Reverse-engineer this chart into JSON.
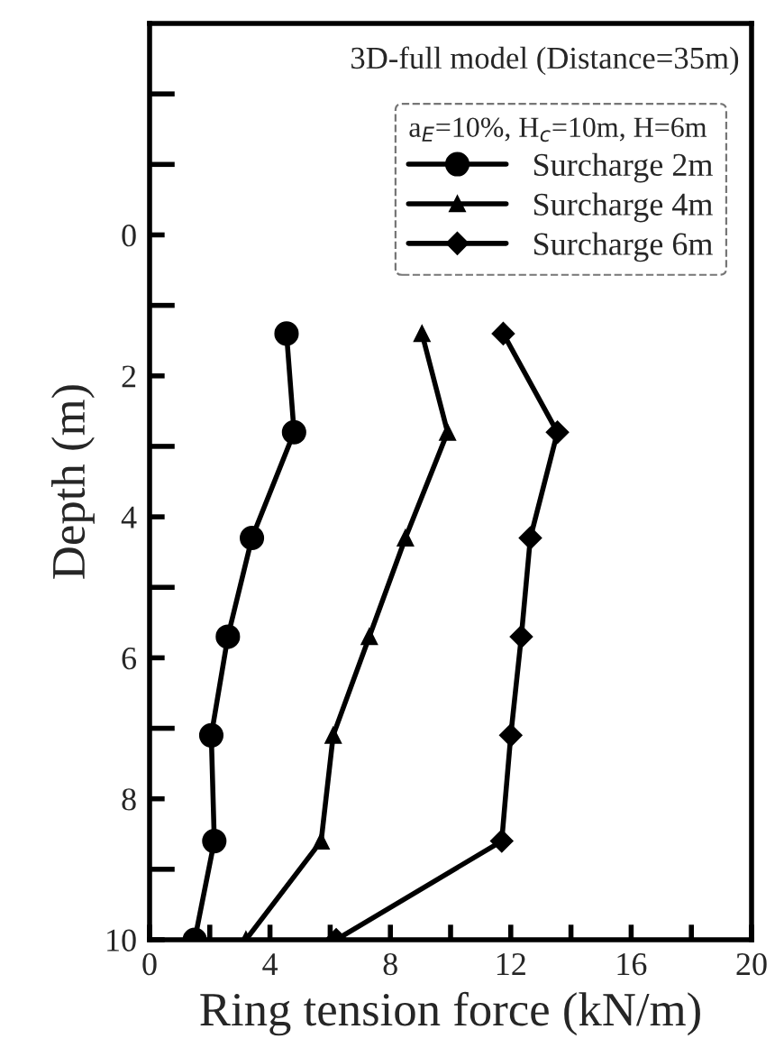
{
  "chart_data": {
    "type": "line",
    "xlabel": "Ring tension force (kN/m)",
    "ylabel": "Depth (m)",
    "legend_title": "a$_{E}$=10%, H$_{c}$=10m, H=6m",
    "annotations": [
      "3D-full model (Distance=35m)"
    ],
    "xlim": [
      0,
      20
    ],
    "ylim": [
      10,
      -3
    ],
    "xticks": [
      0,
      {
        "value": 2,
        "label": null
      },
      4,
      {
        "value": 6,
        "label": null
      },
      8,
      {
        "value": 10,
        "label": null
      },
      12,
      {
        "value": 14,
        "label": null
      },
      16,
      {
        "value": 18,
        "label": null
      },
      20
    ],
    "yticks": [
      {
        "value": -2,
        "label": null
      },
      {
        "value": -1,
        "label": null
      },
      0,
      {
        "value": 1,
        "label": null
      },
      2,
      {
        "value": 3,
        "label": null
      },
      4,
      {
        "value": 5,
        "label": null
      },
      6,
      {
        "value": 7,
        "label": null
      },
      8,
      {
        "value": 9,
        "label": null
      },
      10
    ],
    "grid": false,
    "legend": "top right",
    "line_style": "solid",
    "series": [
      {
        "name": "Surcharge 2m",
        "color": "#000000",
        "marker": "circle",
        "x": [
          4.55,
          4.8,
          3.4,
          2.6,
          2.05,
          2.15,
          1.5
        ],
        "values": [
          1.4,
          2.8,
          4.3,
          5.7,
          7.1,
          8.6,
          10
        ]
      },
      {
        "name": "Surcharge 4m",
        "color": "#000000",
        "marker": "triangle",
        "x": [
          9.05,
          9.9,
          8.5,
          7.3,
          6.1,
          5.7,
          3.2
        ],
        "values": [
          1.4,
          2.8,
          4.3,
          5.7,
          7.1,
          8.6,
          10
        ]
      },
      {
        "name": "Surcharge 6m",
        "color": "#000000",
        "marker": "diamond",
        "x": [
          11.75,
          13.55,
          12.65,
          12.35,
          12.0,
          11.7,
          6.2
        ],
        "values": [
          1.4,
          2.8,
          4.3,
          5.7,
          7.1,
          8.6,
          10
        ]
      }
    ]
  }
}
